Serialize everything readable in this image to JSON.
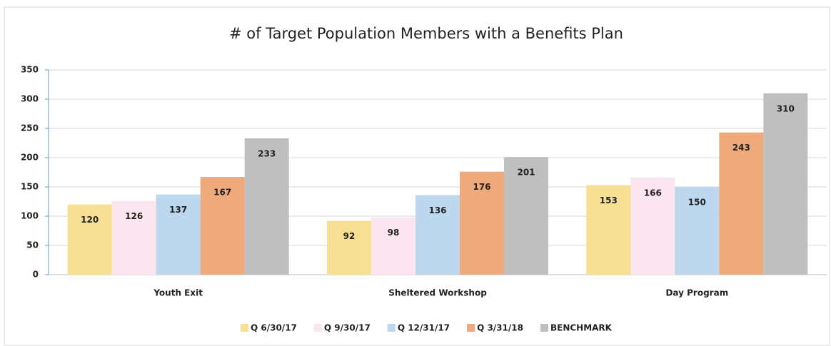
{
  "chart_data": {
    "type": "bar",
    "title": "# of Target Population Members with a Benefits Plan",
    "categories": [
      "Youth Exit",
      "Sheltered Workshop",
      "Day Program"
    ],
    "series": [
      {
        "name": "Q 6/30/17",
        "color": "#f7df94",
        "values": [
          120,
          92,
          153
        ]
      },
      {
        "name": "Q 9/30/17",
        "color": "#fbe5ef",
        "values": [
          126,
          98,
          166
        ]
      },
      {
        "name": "Q 12/31/17",
        "color": "#bdd7ee",
        "values": [
          137,
          136,
          150
        ]
      },
      {
        "name": "Q 3/31/18",
        "color": "#eeaa7b",
        "values": [
          167,
          176,
          243
        ]
      },
      {
        "name": "BENCHMARK",
        "color": "#bfbfbf",
        "values": [
          233,
          201,
          310
        ]
      }
    ],
    "ylim": [
      0,
      350
    ],
    "yticks": [
      0,
      50,
      100,
      150,
      200,
      250,
      300,
      350
    ],
    "grid": true,
    "legend": "bottom"
  }
}
